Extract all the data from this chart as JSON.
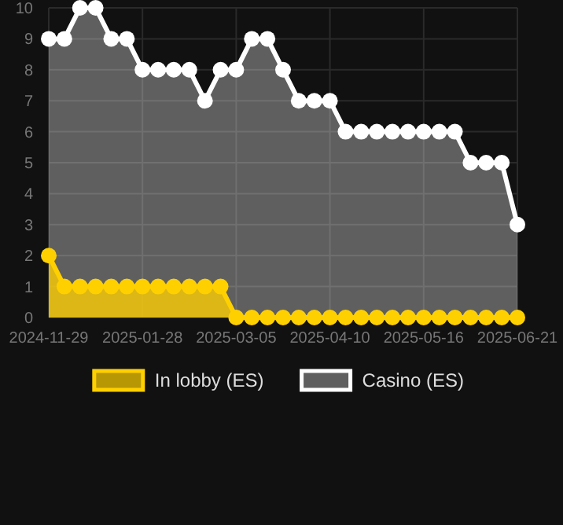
{
  "chart_data": {
    "type": "area",
    "categories": [
      "2024-11-29",
      null,
      null,
      null,
      null,
      null,
      "2025-01-28",
      null,
      null,
      null,
      null,
      null,
      "2025-03-05",
      null,
      null,
      null,
      null,
      null,
      "2025-04-10",
      null,
      null,
      null,
      null,
      null,
      "2025-05-16",
      null,
      null,
      null,
      null,
      null,
      "2025-06-21"
    ],
    "series": [
      {
        "name": "In lobby (ES)",
        "color": "#ffd000",
        "values": [
          2,
          1,
          1,
          1,
          1,
          1,
          1,
          1,
          1,
          1,
          1,
          1,
          0,
          0,
          0,
          0,
          0,
          0,
          0,
          0,
          0,
          0,
          0,
          0,
          0,
          0,
          0,
          0,
          0,
          0,
          0
        ]
      },
      {
        "name": "Casino (ES)",
        "color": "#ffffff",
        "values": [
          9,
          9,
          10,
          10,
          9,
          9,
          8,
          8,
          8,
          8,
          7,
          8,
          8,
          9,
          9,
          8,
          7,
          7,
          7,
          6,
          6,
          6,
          6,
          6,
          6,
          6,
          6,
          5,
          5,
          5,
          3
        ]
      }
    ],
    "ylim": [
      0,
      10
    ],
    "yticks": [
      0,
      1,
      2,
      3,
      4,
      5,
      6,
      7,
      8,
      9,
      10
    ],
    "grid": true,
    "legend": "bottom",
    "marker": "circle",
    "line_style": "solid"
  }
}
